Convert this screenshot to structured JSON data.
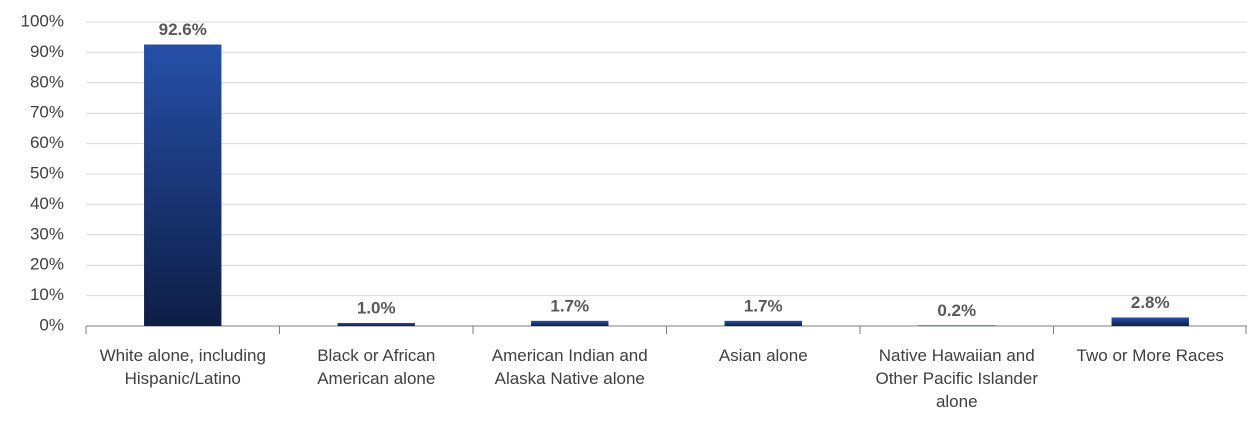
{
  "chart_data": {
    "type": "bar",
    "categories": [
      "White alone, including Hispanic/Latino",
      "Black or African American alone",
      "American Indian and Alaska Native alone",
      "Asian alone",
      "Native Hawaiian and Other Pacific Islander alone",
      "Two or More Races"
    ],
    "values": [
      92.6,
      1.0,
      1.7,
      1.7,
      0.2,
      2.8
    ],
    "value_labels": [
      "92.6%",
      "1.0%",
      "1.7%",
      "1.7%",
      "0.2%",
      "2.8%"
    ],
    "color": "#2550a8",
    "ylim": [
      0,
      100
    ],
    "yticks": [
      {
        "value": 0,
        "label": "0%"
      },
      {
        "value": 10,
        "label": "10%"
      },
      {
        "value": 20,
        "label": "20%"
      },
      {
        "value": 30,
        "label": "30%"
      },
      {
        "value": 40,
        "label": "40%"
      },
      {
        "value": 50,
        "label": "50%"
      },
      {
        "value": 60,
        "label": "60%"
      },
      {
        "value": 70,
        "label": "70%"
      },
      {
        "value": 80,
        "label": "80%"
      },
      {
        "value": 90,
        "label": "90%"
      },
      {
        "value": 100,
        "label": "100%"
      }
    ],
    "grid": true
  }
}
